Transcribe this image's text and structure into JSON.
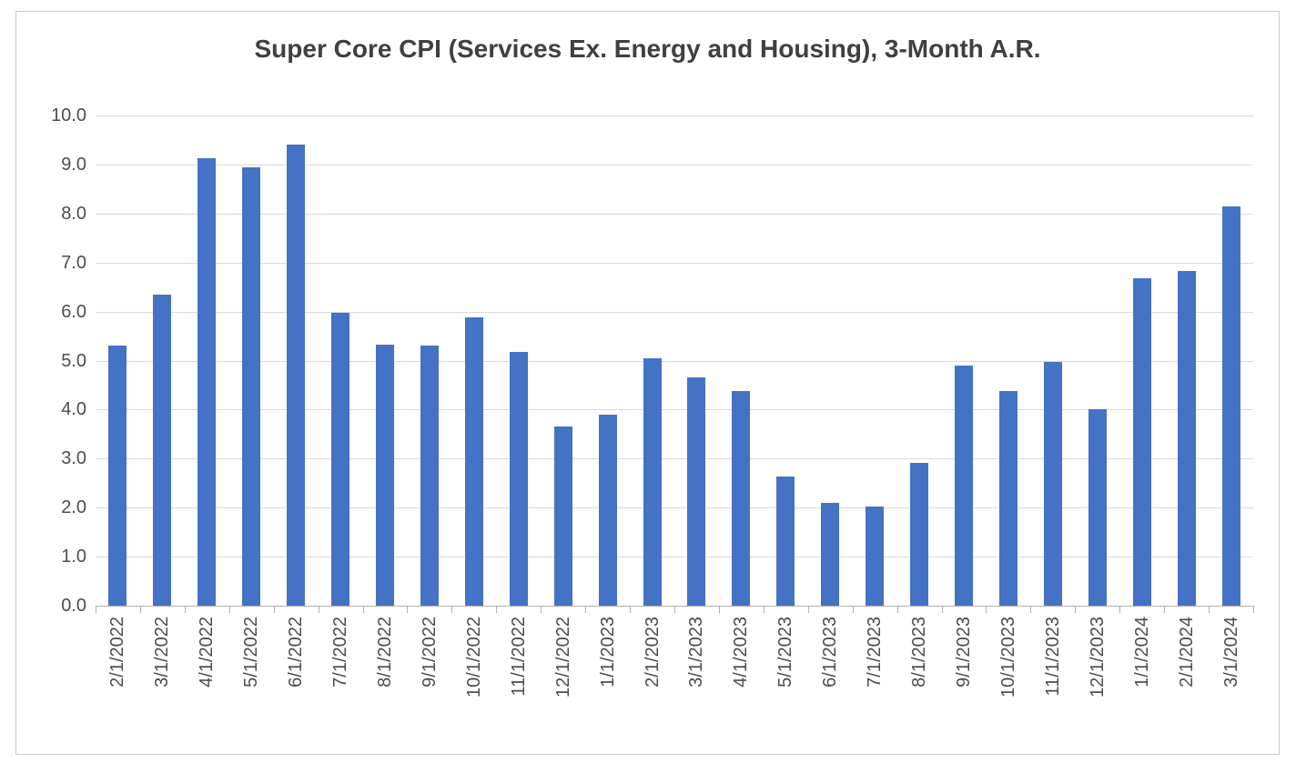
{
  "chart": {
    "frame_border_color": "#c9c9c9",
    "title_color": "#404040",
    "axis_text_color": "#4d4d4d",
    "bar_color": "#4472C4",
    "gridline_color": "#d9d9d9",
    "axis_line_color": "#b0b0b0",
    "background_color": "#ffffff"
  },
  "chart_data": {
    "type": "bar",
    "title": "Super Core CPI (Services Ex. Energy and Housing), 3-Month A.R.",
    "xlabel": "",
    "ylabel": "",
    "categories": [
      "2/1/2022",
      "3/1/2022",
      "4/1/2022",
      "5/1/2022",
      "6/1/2022",
      "7/1/2022",
      "8/1/2022",
      "9/1/2022",
      "10/1/2022",
      "11/1/2022",
      "12/1/2022",
      "1/1/2023",
      "2/1/2023",
      "3/1/2023",
      "4/1/2023",
      "5/1/2023",
      "6/1/2023",
      "7/1/2023",
      "8/1/2023",
      "9/1/2023",
      "10/1/2023",
      "11/1/2023",
      "12/1/2023",
      "1/1/2024",
      "2/1/2024",
      "3/1/2024"
    ],
    "values": [
      5.3,
      6.35,
      9.13,
      8.95,
      9.4,
      5.98,
      5.32,
      5.3,
      5.88,
      5.18,
      3.65,
      3.9,
      5.05,
      4.65,
      4.37,
      2.63,
      2.1,
      2.03,
      2.92,
      4.9,
      4.37,
      4.97,
      4.0,
      6.67,
      6.82,
      8.15
    ],
    "ylim": [
      0,
      10
    ],
    "ytick_step": 1,
    "ytick_labels": [
      "0.0",
      "1.0",
      "2.0",
      "3.0",
      "4.0",
      "5.0",
      "6.0",
      "7.0",
      "8.0",
      "9.0",
      "10.0"
    ],
    "grid": true,
    "legend": false,
    "x_tick_label_rotation_deg": 90,
    "bar_count": 26
  }
}
